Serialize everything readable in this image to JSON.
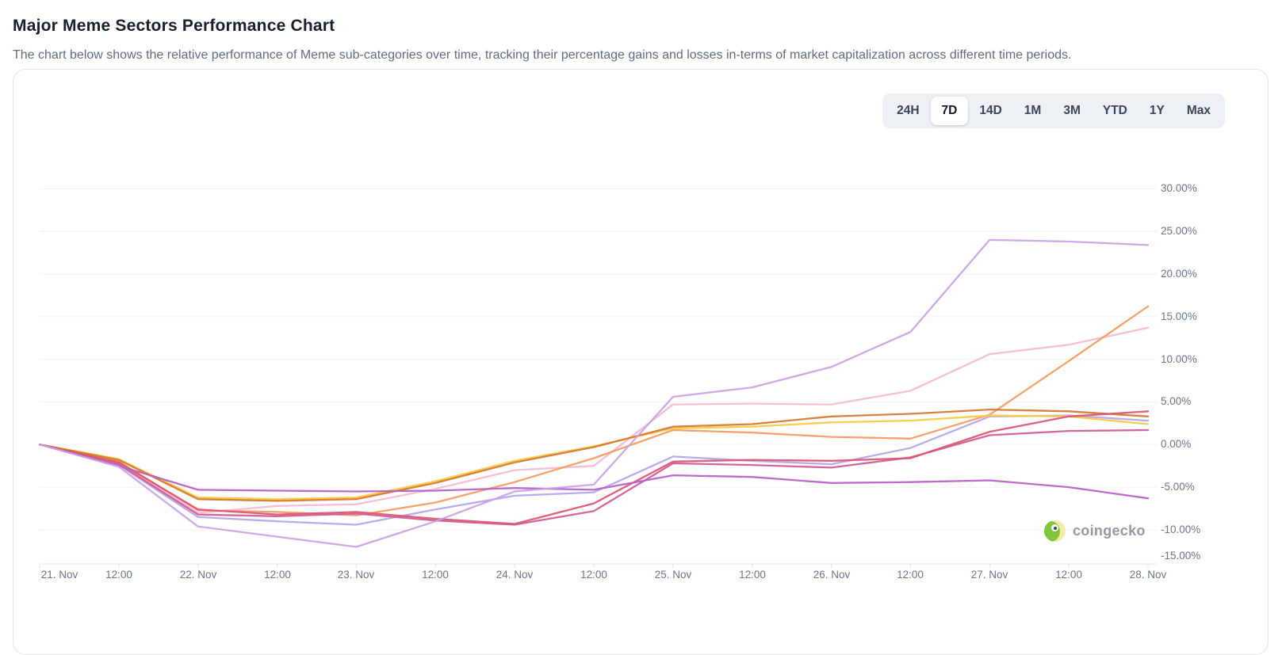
{
  "page": {
    "title": "Major Meme Sectors Performance Chart",
    "subtitle": "The chart below shows the relative performance of Meme sub-categories over time, tracking their percentage gains and losses in-terms of market capitalization across different time periods."
  },
  "range_selector": {
    "options": [
      "24H",
      "7D",
      "14D",
      "1M",
      "3M",
      "YTD",
      "1Y",
      "Max"
    ],
    "active": "7D"
  },
  "watermark": {
    "label": "coingecko"
  },
  "chart_data": {
    "type": "line",
    "title": "Major Meme Sectors Performance Chart",
    "xlabel": "",
    "ylabel": "",
    "legend": "none",
    "grid": true,
    "x_labels": [
      "21. Nov",
      "12:00",
      "22. Nov",
      "12:00",
      "23. Nov",
      "12:00",
      "24. Nov",
      "12:00",
      "25. Nov",
      "12:00",
      "26. Nov",
      "12:00",
      "27. Nov",
      "12:00",
      "28. Nov"
    ],
    "y_axis": {
      "min": -15,
      "max": 30,
      "step": 5,
      "tick_labels": [
        "30.00%",
        "25.00%",
        "20.00%",
        "15.00%",
        "10.00%",
        "5.00%",
        "0.00%",
        "-5.00%",
        "-10.00%",
        "-15.00%"
      ],
      "tick_values": [
        30,
        25,
        20,
        15,
        10,
        5,
        0,
        -5,
        -10,
        -15
      ],
      "unit": "% market cap change"
    },
    "series": [
      {
        "name": "series-lavender",
        "color": "#b3a4ea",
        "values": [
          0,
          -2.4,
          -8.5,
          -9.0,
          -9.4,
          -7.6,
          -6.0,
          -5.6,
          -1.4,
          -1.9,
          -2.3,
          -0.4,
          3.3,
          3.4,
          2.8
        ]
      },
      {
        "name": "series-light-pink",
        "color": "#f6b9d5",
        "values": [
          0,
          -2.2,
          -8.0,
          -7.2,
          -7.0,
          -5.2,
          -3.0,
          -2.5,
          4.7,
          4.8,
          4.7,
          6.3,
          10.6,
          11.7,
          13.7
        ]
      },
      {
        "name": "series-salmon-orange",
        "color": "#f49a5f",
        "values": [
          0,
          -2.0,
          -7.7,
          -7.9,
          -8.3,
          -6.8,
          -4.4,
          -1.6,
          1.7,
          1.4,
          0.9,
          0.7,
          3.5,
          9.8,
          16.2
        ]
      },
      {
        "name": "series-yellow",
        "color": "#f7ca41",
        "values": [
          0,
          -1.7,
          -6.2,
          -6.4,
          -6.2,
          -4.3,
          -1.9,
          -0.2,
          1.9,
          2.1,
          2.6,
          2.8,
          3.4,
          3.3,
          2.4
        ]
      },
      {
        "name": "series-dark-orange",
        "color": "#d4772e",
        "values": [
          0,
          -1.8,
          -6.4,
          -6.6,
          -6.4,
          -4.5,
          -2.1,
          -0.3,
          2.1,
          2.4,
          3.3,
          3.6,
          4.1,
          3.9,
          3.3
        ]
      },
      {
        "name": "series-magenta",
        "color": "#cf5a94",
        "values": [
          0,
          -2.3,
          -8.2,
          -8.4,
          -8.1,
          -8.9,
          -9.4,
          -7.8,
          -2.2,
          -2.4,
          -2.7,
          -1.5,
          1.1,
          1.6,
          1.7
        ]
      },
      {
        "name": "series-crimson",
        "color": "#dc5470",
        "values": [
          0,
          -2.1,
          -7.6,
          -8.2,
          -7.9,
          -8.7,
          -9.3,
          -6.9,
          -2.0,
          -1.8,
          -1.9,
          -1.6,
          1.5,
          3.3,
          3.9
        ]
      },
      {
        "name": "series-orchid",
        "color": "#b55fc5",
        "values": [
          0,
          -2.5,
          -5.3,
          -5.4,
          -5.5,
          -5.4,
          -5.1,
          -5.3,
          -3.6,
          -3.8,
          -4.5,
          -4.4,
          -4.2,
          -5.0,
          -6.3
        ]
      },
      {
        "name": "series-plum",
        "color": "#c9a2e4",
        "values": [
          0,
          -2.6,
          -9.6,
          -10.8,
          -12.0,
          -9.0,
          -5.5,
          -4.7,
          5.6,
          6.7,
          9.1,
          13.2,
          24.0,
          23.8,
          23.4
        ]
      }
    ]
  }
}
